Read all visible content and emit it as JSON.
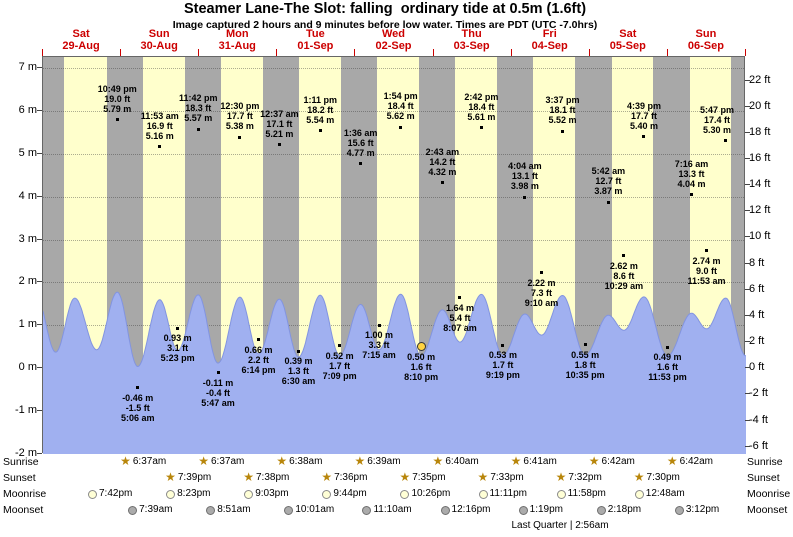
{
  "title": "Steamer Lane-The Slot: falling  ordinary tide at 0.5m (1.6ft)",
  "subtitle": "Image captured 2 hours and 9 minutes before low water. Times are PDT (UTC -7.0hrs)",
  "colors": {
    "daylight_band": "#ffffcc",
    "night_band": "#a8a8a8",
    "tide_fill": "#a0b0f0",
    "tide_stroke": "#8294e0",
    "date_label": "#cc0000",
    "current_marker": "#ffd341",
    "star_icon": "#b8860b"
  },
  "chart_data": {
    "type": "area",
    "title": "Steamer Lane-The Slot tide heights",
    "ylabel_left": "meters",
    "ylabel_right": "feet",
    "ylim_m": [
      -2,
      7
    ],
    "ylim_ft": [
      -6,
      22
    ],
    "grid": true,
    "days": [
      {
        "name": "Sat",
        "date": "29-Aug",
        "daylight": [
          6.6,
          19.68
        ]
      },
      {
        "name": "Sun",
        "date": "30-Aug",
        "daylight": [
          6.62,
          19.65
        ]
      },
      {
        "name": "Mon",
        "date": "31-Aug",
        "daylight": [
          6.62,
          19.63
        ]
      },
      {
        "name": "Tue",
        "date": "01-Sep",
        "daylight": [
          6.63,
          19.6
        ]
      },
      {
        "name": "Wed",
        "date": "02-Sep",
        "daylight": [
          6.65,
          19.58
        ]
      },
      {
        "name": "Thu",
        "date": "03-Sep",
        "daylight": [
          6.67,
          19.55
        ]
      },
      {
        "name": "Fri",
        "date": "04-Sep",
        "daylight": [
          6.68,
          19.53
        ]
      },
      {
        "name": "Sat",
        "date": "05-Sep",
        "daylight": [
          6.7,
          19.5
        ]
      },
      {
        "name": "Sun",
        "date": "06-Sep",
        "daylight": [
          6.7,
          19.48
        ]
      }
    ],
    "m_ticks": [
      {
        "v": 7,
        "label": "7 m"
      },
      {
        "v": 6,
        "label": "6 m"
      },
      {
        "v": 5,
        "label": "5 m"
      },
      {
        "v": 4,
        "label": "4 m"
      },
      {
        "v": 3,
        "label": "3 m"
      },
      {
        "v": 2,
        "label": "2 m"
      },
      {
        "v": 1,
        "label": "1 m"
      },
      {
        "v": 0,
        "label": "0 m"
      },
      {
        "v": -1,
        "label": "-1 m"
      },
      {
        "v": -2,
        "label": "-2 m"
      }
    ],
    "ft_ticks": [
      {
        "v": 22,
        "label": "22 ft"
      },
      {
        "v": 20,
        "label": "20 ft"
      },
      {
        "v": 18,
        "label": "18 ft"
      },
      {
        "v": 16,
        "label": "16 ft"
      },
      {
        "v": 14,
        "label": "14 ft"
      },
      {
        "v": 12,
        "label": "12 ft"
      },
      {
        "v": 10,
        "label": "10 ft"
      },
      {
        "v": 8,
        "label": "8 ft"
      },
      {
        "v": 6,
        "label": "6 ft"
      },
      {
        "v": 4,
        "label": "4 ft"
      },
      {
        "v": 2,
        "label": "2 ft"
      },
      {
        "v": 0,
        "label": "0 ft"
      },
      {
        "v": -2,
        "label": "-2 ft"
      },
      {
        "v": -4,
        "label": "-4 ft"
      },
      {
        "v": -6,
        "label": "-6 ft"
      }
    ],
    "tide_events": [
      {
        "day": -1,
        "hour": 21.8,
        "m": 5.6,
        "kind": "high"
      },
      {
        "day": 0,
        "hour": 3.9,
        "m": 0.8,
        "kind": "low"
      },
      {
        "day": 0,
        "hour": 9.75,
        "m": 5.3,
        "kind": "high"
      },
      {
        "day": 0,
        "hour": 16.5,
        "m": 1.0,
        "kind": "low"
      },
      {
        "day": 0,
        "hour": 22.82,
        "m": 5.79,
        "kind": "high",
        "lines": [
          "10:49 pm",
          "19.0 ft",
          "5.79 m"
        ]
      },
      {
        "day": 1,
        "hour": 5.1,
        "m": -0.46,
        "kind": "low",
        "lines": [
          "-0.46 m",
          "-1.5 ft",
          "5:06 am"
        ]
      },
      {
        "day": 1,
        "hour": 11.88,
        "m": 5.16,
        "kind": "high",
        "lines": [
          "11:53 am",
          "16.9 ft",
          "5.16 m"
        ]
      },
      {
        "day": 1,
        "hour": 17.38,
        "m": 0.93,
        "kind": "low",
        "lines": [
          "0.93 m",
          "3.1 ft",
          "5:23 pm"
        ]
      },
      {
        "day": 1,
        "hour": 23.7,
        "m": 5.57,
        "kind": "high",
        "lines": [
          "11:42 pm",
          "18.3 ft",
          "5.57 m"
        ]
      },
      {
        "day": 2,
        "hour": 5.78,
        "m": -0.11,
        "kind": "low",
        "lines": [
          "-0.11 m",
          "-0.4 ft",
          "5:47 am"
        ]
      },
      {
        "day": 2,
        "hour": 12.5,
        "m": 5.38,
        "kind": "high",
        "lines": [
          "12:30 pm",
          "17.7 ft",
          "5.38 m"
        ]
      },
      {
        "day": 2,
        "hour": 18.23,
        "m": 0.66,
        "kind": "low",
        "lines": [
          "0.66 m",
          "2.2 ft",
          "6:14 pm"
        ]
      },
      {
        "day": 3,
        "hour": 0.62,
        "m": 5.21,
        "kind": "high",
        "lines": [
          "12:37 am",
          "17.1 ft",
          "5.21 m"
        ]
      },
      {
        "day": 3,
        "hour": 6.5,
        "m": 0.39,
        "kind": "low",
        "lines": [
          "0.39 m",
          "1.3 ft",
          "6:30 am"
        ]
      },
      {
        "day": 3,
        "hour": 13.18,
        "m": 5.54,
        "kind": "high",
        "lines": [
          "1:11 pm",
          "18.2 ft",
          "5.54 m"
        ]
      },
      {
        "day": 3,
        "hour": 19.15,
        "m": 0.52,
        "kind": "low",
        "lines": [
          "0.52 m",
          "1.7 ft",
          "7:09 pm"
        ]
      },
      {
        "day": 4,
        "hour": 1.6,
        "m": 4.77,
        "kind": "high",
        "lines": [
          "1:36 am",
          "15.6 ft",
          "4.77 m"
        ]
      },
      {
        "day": 4,
        "hour": 7.25,
        "m": 1.0,
        "kind": "low",
        "lines": [
          "1.00 m",
          "3.3 ft",
          "7:15 am"
        ]
      },
      {
        "day": 4,
        "hour": 13.9,
        "m": 5.62,
        "kind": "high",
        "lines": [
          "1:54 pm",
          "18.4 ft",
          "5.62 m"
        ]
      },
      {
        "day": 4,
        "hour": 20.17,
        "m": 0.5,
        "kind": "low",
        "current": true,
        "lines": [
          "0.50 m",
          "1.6 ft",
          "8:10 pm"
        ]
      },
      {
        "day": 5,
        "hour": 2.72,
        "m": 4.32,
        "kind": "high",
        "lines": [
          "2:43 am",
          "14.2 ft",
          "4.32 m"
        ]
      },
      {
        "day": 5,
        "hour": 8.12,
        "m": 1.64,
        "kind": "low",
        "lines": [
          "1.64 m",
          "5.4 ft",
          "8:07 am"
        ]
      },
      {
        "day": 5,
        "hour": 14.7,
        "m": 5.61,
        "kind": "high",
        "lines": [
          "2:42 pm",
          "18.4 ft",
          "5.61 m"
        ]
      },
      {
        "day": 5,
        "hour": 21.32,
        "m": 0.53,
        "kind": "low",
        "lines": [
          "0.53 m",
          "1.7 ft",
          "9:19 pm"
        ]
      },
      {
        "day": 6,
        "hour": 4.07,
        "m": 3.98,
        "kind": "high",
        "lines": [
          "4:04 am",
          "13.1 ft",
          "3.98 m"
        ]
      },
      {
        "day": 6,
        "hour": 9.17,
        "m": 2.22,
        "kind": "low",
        "lines": [
          "2.22 m",
          "7.3 ft",
          "9:10 am"
        ]
      },
      {
        "day": 6,
        "hour": 15.62,
        "m": 5.52,
        "kind": "high",
        "lines": [
          "3:37 pm",
          "18.1 ft",
          "5.52 m"
        ]
      },
      {
        "day": 6,
        "hour": 22.58,
        "m": 0.55,
        "kind": "low",
        "lines": [
          "0.55 m",
          "1.8 ft",
          "10:35 pm"
        ]
      },
      {
        "day": 7,
        "hour": 5.7,
        "m": 3.87,
        "kind": "high",
        "lines": [
          "5:42 am",
          "12.7 ft",
          "3.87 m"
        ]
      },
      {
        "day": 7,
        "hour": 10.48,
        "m": 2.62,
        "kind": "low",
        "lines": [
          "2.62 m",
          "8.6 ft",
          "10:29 am"
        ]
      },
      {
        "day": 7,
        "hour": 16.65,
        "m": 5.4,
        "kind": "high",
        "lines": [
          "4:39 pm",
          "17.7 ft",
          "5.40 m"
        ]
      },
      {
        "day": 7,
        "hour": 23.88,
        "m": 0.49,
        "kind": "low",
        "lines": [
          "0.49 m",
          "1.6 ft",
          "11:53 pm"
        ]
      },
      {
        "day": 8,
        "hour": 7.27,
        "m": 4.04,
        "kind": "high",
        "lines": [
          "7:16 am",
          "13.3 ft",
          "4.04 m"
        ]
      },
      {
        "day": 8,
        "hour": 11.88,
        "m": 2.74,
        "kind": "low",
        "lines": [
          "2.74 m",
          "9.0 ft",
          "11:53 am"
        ]
      },
      {
        "day": 8,
        "hour": 17.78,
        "m": 5.3,
        "kind": "high",
        "lines": [
          "5:47 pm",
          "17.4 ft",
          "5.30 m"
        ]
      },
      {
        "day": 8,
        "hour": 23.9,
        "m": 0.5,
        "kind": "low"
      }
    ]
  },
  "astro": {
    "rows": [
      {
        "label": "Sunrise",
        "icon": "sunrise-star",
        "entries": [
          {
            "day": 1,
            "time": "6:37am"
          },
          {
            "day": 2,
            "time": "6:37am"
          },
          {
            "day": 3,
            "time": "6:38am"
          },
          {
            "day": 4,
            "time": "6:39am"
          },
          {
            "day": 5,
            "time": "6:40am"
          },
          {
            "day": 6,
            "time": "6:41am"
          },
          {
            "day": 7,
            "time": "6:42am"
          },
          {
            "day": 8,
            "time": "6:42am"
          }
        ]
      },
      {
        "label": "Sunset",
        "icon": "sunset-star",
        "entries": [
          {
            "day": 1,
            "time": "7:39pm"
          },
          {
            "day": 2,
            "time": "7:38pm"
          },
          {
            "day": 3,
            "time": "7:36pm"
          },
          {
            "day": 4,
            "time": "7:35pm"
          },
          {
            "day": 5,
            "time": "7:33pm"
          },
          {
            "day": 6,
            "time": "7:32pm"
          },
          {
            "day": 7,
            "time": "7:30pm"
          }
        ]
      },
      {
        "label": "Moonrise",
        "icon": "moonrise-circle",
        "entries": [
          {
            "day": 0,
            "time": "7:42pm"
          },
          {
            "day": 1,
            "time": "8:23pm"
          },
          {
            "day": 2,
            "time": "9:03pm"
          },
          {
            "day": 3,
            "time": "9:44pm"
          },
          {
            "day": 4,
            "time": "10:26pm"
          },
          {
            "day": 5,
            "time": "11:11pm"
          },
          {
            "day": 6,
            "time": "11:58pm"
          },
          {
            "day": 7,
            "time": "12:48am"
          }
        ]
      },
      {
        "label": "Moonset",
        "icon": "moonset-circle",
        "entries": [
          {
            "day": 1,
            "time": "7:39am"
          },
          {
            "day": 2,
            "time": "8:51am"
          },
          {
            "day": 3,
            "time": "10:01am"
          },
          {
            "day": 4,
            "time": "11:10am"
          },
          {
            "day": 5,
            "time": "12:16pm"
          },
          {
            "day": 6,
            "time": "1:19pm"
          },
          {
            "day": 7,
            "time": "2:18pm"
          },
          {
            "day": 8,
            "time": "3:12pm"
          }
        ]
      }
    ],
    "moon_phase_note": "Last Quarter | 2:56am"
  }
}
